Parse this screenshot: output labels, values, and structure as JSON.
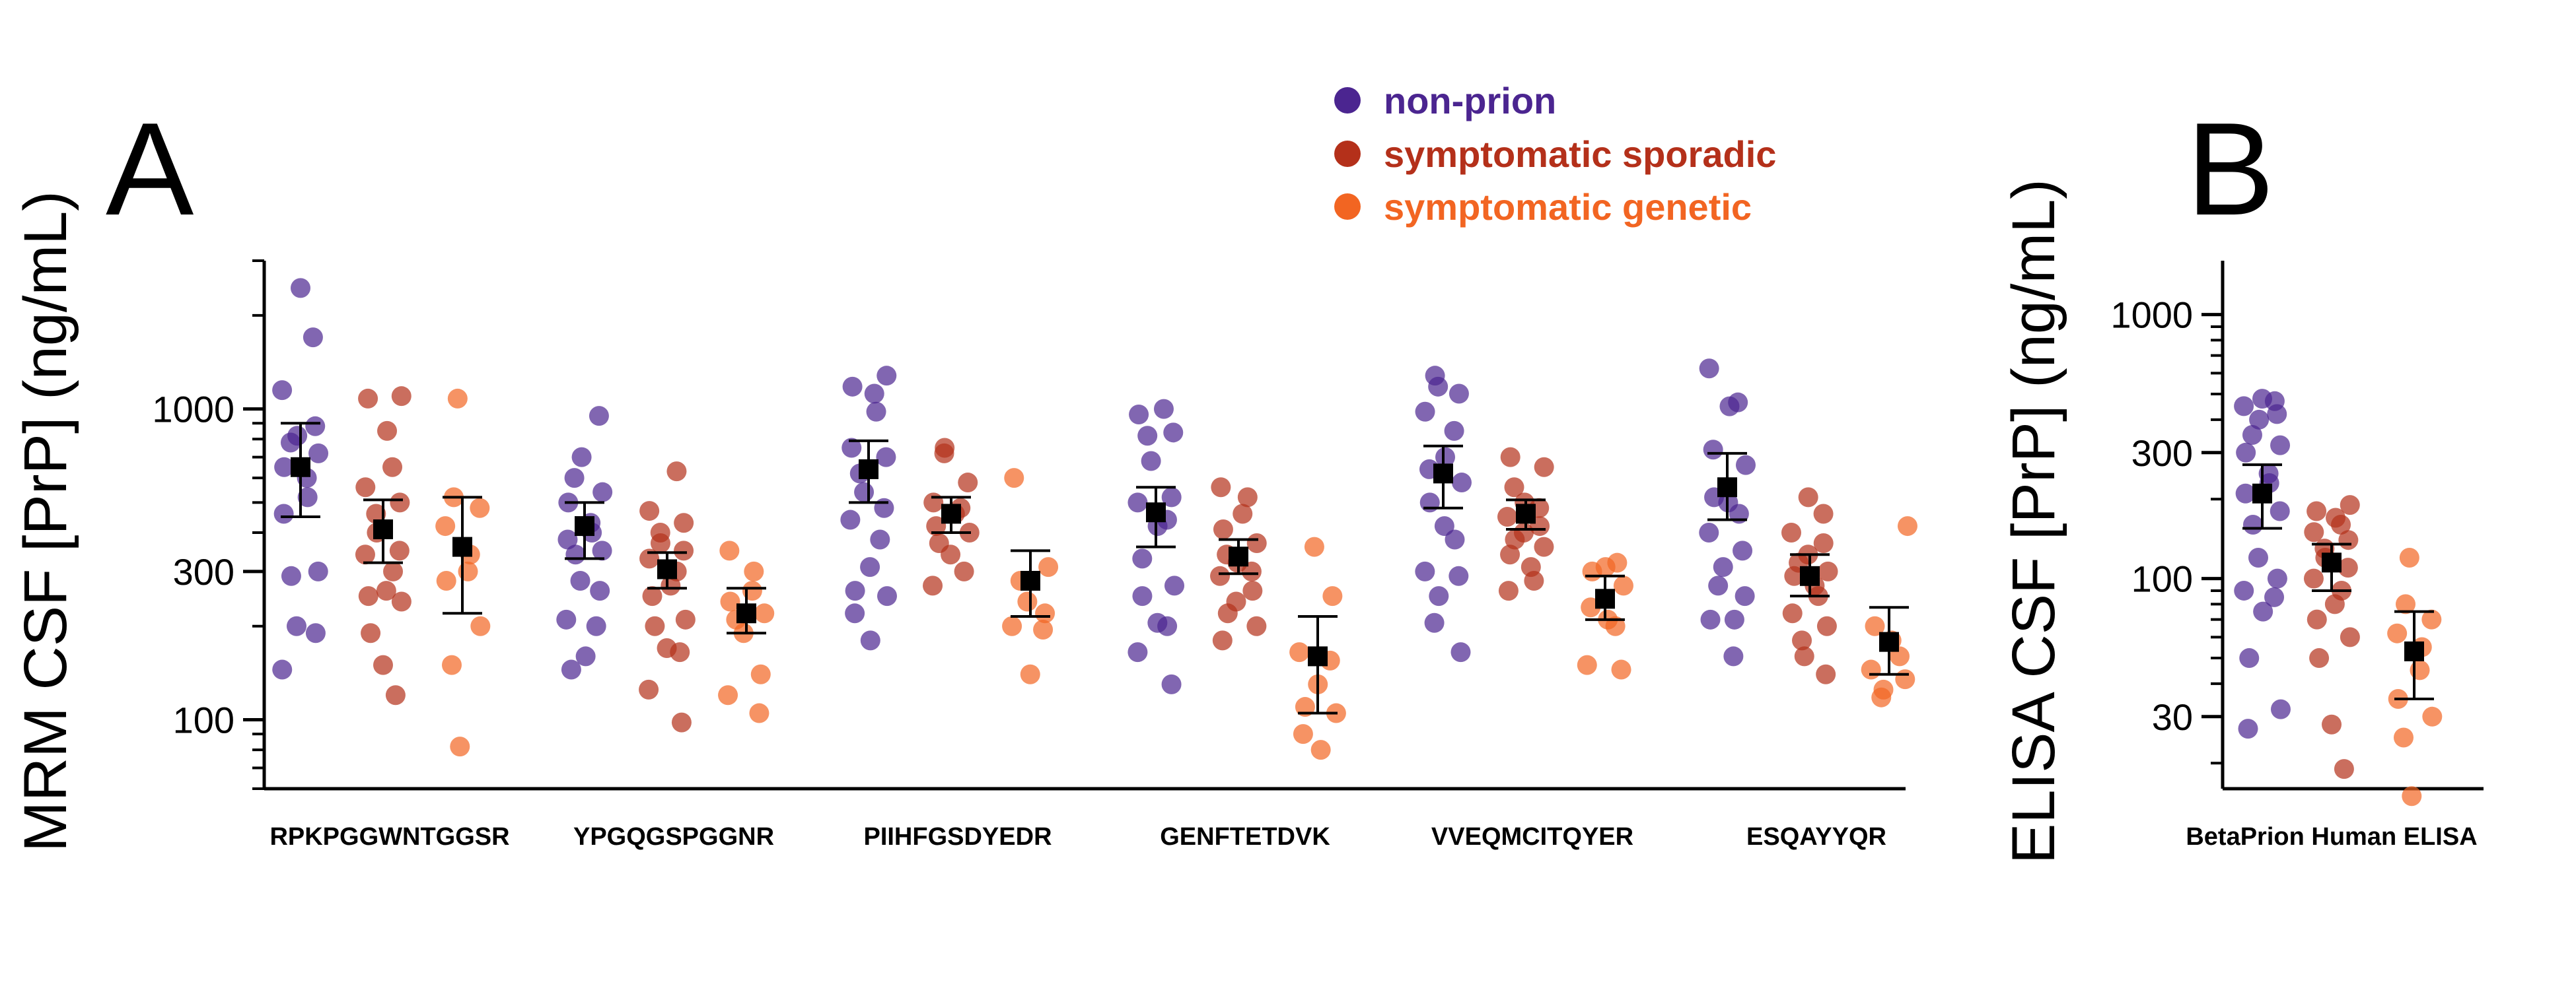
{
  "panel_a_letter": "A",
  "panel_b_letter": "B",
  "colors": {
    "non_prion": "#4b2590",
    "symptomatic_sporadic": "#b4301a",
    "symptomatic_genetic": "#f26522",
    "mean_marker": "#000000",
    "axis": "#000000"
  },
  "legend": [
    {
      "label": "non-prion",
      "color": "#4b2590"
    },
    {
      "label": "symptomatic sporadic",
      "color": "#b4301a"
    },
    {
      "label": "symptomatic genetic",
      "color": "#f26522"
    }
  ],
  "chart_data": [
    {
      "panel": "A",
      "type": "scatter",
      "ylabel": "MRM CSF [PrP] (ng/mL)",
      "yscale": "log",
      "ylim": [
        60,
        3000
      ],
      "yticks": [
        100,
        300,
        1000
      ],
      "ytick_labels": [
        "100",
        "300",
        "1000"
      ],
      "categories": [
        "RPKPGGWNTGGSR",
        "YPGQGSPGGNR",
        "PIIHFGSDYEDR",
        "GENFTETDVK",
        "VVEQMCITQYER",
        "ESQAYYQR"
      ],
      "series": [
        {
          "name": "non-prion",
          "points": [
            [
              2450,
              1700,
              1150,
              880,
              820,
              780,
              720,
              650,
              600,
              520,
              460,
              300,
              290,
              200,
              190,
              145
            ],
            [
              950,
              700,
              600,
              540,
              500,
              430,
              400,
              380,
              350,
              340,
              280,
              260,
              210,
              200,
              160,
              145
            ],
            [
              1280,
              1180,
              1120,
              980,
              750,
              700,
              620,
              540,
              480,
              440,
              380,
              310,
              260,
              250,
              220,
              180
            ],
            [
              1000,
              960,
              840,
              820,
              680,
              520,
              500,
              440,
              420,
              330,
              270,
              250,
              205,
              200,
              165,
              130
            ],
            [
              1280,
              1180,
              1120,
              980,
              850,
              700,
              640,
              580,
              500,
              420,
              380,
              300,
              290,
              250,
              205,
              165
            ],
            [
              1350,
              1050,
              1020,
              740,
              660,
              520,
              500,
              460,
              400,
              350,
              310,
              270,
              250,
              210,
              210,
              160
            ]
          ]
        },
        {
          "name": "symptomatic sporadic",
          "points": [
            [
              1100,
              1080,
              850,
              650,
              560,
              500,
              460,
              400,
              350,
              340,
              300,
              260,
              250,
              240,
              190,
              150,
              120
            ],
            [
              630,
              470,
              430,
              400,
              370,
              350,
              330,
              300,
              270,
              250,
              210,
              200,
              170,
              165,
              125,
              98
            ],
            [
              750,
              720,
              580,
              500,
              480,
              460,
              420,
              400,
              370,
              340,
              300,
              270
            ],
            [
              560,
              520,
              460,
              410,
              370,
              340,
              320,
              300,
              290,
              260,
              240,
              220,
              200,
              180
            ],
            [
              700,
              650,
              560,
              500,
              480,
              450,
              420,
              400,
              380,
              360,
              340,
              310,
              280,
              260
            ],
            [
              520,
              460,
              400,
              370,
              340,
              320,
              300,
              290,
              270,
              250,
              220,
              200,
              180,
              160,
              140
            ]
          ]
        },
        {
          "name": "symptomatic genetic",
          "points": [
            [
              1080,
              520,
              480,
              420,
              340,
              300,
              280,
              200,
              150,
              82
            ],
            [
              350,
              300,
              260,
              240,
              220,
              210,
              190,
              140,
              120,
              105
            ],
            [
              600,
              310,
              280,
              240,
              220,
              200,
              195,
              140
            ],
            [
              360,
              250,
              165,
              155,
              130,
              110,
              105,
              90,
              80
            ],
            [
              320,
              310,
              300,
              270,
              230,
              210,
              200,
              150,
              145
            ],
            [
              420,
              200,
              180,
              160,
              145,
              135,
              125,
              118
            ]
          ]
        }
      ],
      "summary": [
        {
          "category": "RPKPGGWNTGGSR",
          "group": "non-prion",
          "mean": 650,
          "low": 450,
          "high": 900
        },
        {
          "category": "RPKPGGWNTGGSR",
          "group": "symptomatic sporadic",
          "mean": 410,
          "low": 320,
          "high": 510
        },
        {
          "category": "RPKPGGWNTGGSR",
          "group": "symptomatic genetic",
          "mean": 360,
          "low": 220,
          "high": 520
        },
        {
          "category": "YPGQGSPGGNR",
          "group": "non-prion",
          "mean": 420,
          "low": 330,
          "high": 500
        },
        {
          "category": "YPGQGSPGGNR",
          "group": "symptomatic sporadic",
          "mean": 305,
          "low": 265,
          "high": 345
        },
        {
          "category": "YPGQGSPGGNR",
          "group": "symptomatic genetic",
          "mean": 220,
          "low": 190,
          "high": 265
        },
        {
          "category": "PIIHFGSDYEDR",
          "group": "non-prion",
          "mean": 640,
          "low": 500,
          "high": 790
        },
        {
          "category": "PIIHFGSDYEDR",
          "group": "symptomatic sporadic",
          "mean": 460,
          "low": 400,
          "high": 520
        },
        {
          "category": "PIIHFGSDYEDR",
          "group": "symptomatic genetic",
          "mean": 280,
          "low": 215,
          "high": 350
        },
        {
          "category": "GENFTETDVK",
          "group": "non-prion",
          "mean": 465,
          "low": 360,
          "high": 560
        },
        {
          "category": "GENFTETDVK",
          "group": "symptomatic sporadic",
          "mean": 335,
          "low": 295,
          "high": 380
        },
        {
          "category": "GENFTETDVK",
          "group": "symptomatic genetic",
          "mean": 160,
          "low": 105,
          "high": 215
        },
        {
          "category": "VVEQMCITQYER",
          "group": "non-prion",
          "mean": 620,
          "low": 480,
          "high": 760
        },
        {
          "category": "VVEQMCITQYER",
          "group": "symptomatic sporadic",
          "mean": 460,
          "low": 410,
          "high": 510
        },
        {
          "category": "VVEQMCITQYER",
          "group": "symptomatic genetic",
          "mean": 245,
          "low": 210,
          "high": 290
        },
        {
          "category": "ESQAYYQR",
          "group": "non-prion",
          "mean": 560,
          "low": 440,
          "high": 720
        },
        {
          "category": "ESQAYYQR",
          "group": "symptomatic sporadic",
          "mean": 290,
          "low": 250,
          "high": 340
        },
        {
          "category": "ESQAYYQR",
          "group": "symptomatic genetic",
          "mean": 178,
          "low": 140,
          "high": 230
        }
      ]
    },
    {
      "panel": "B",
      "type": "scatter",
      "ylabel": "ELISA CSF [PrP] (ng/mL)",
      "yscale": "log",
      "ylim": [
        16,
        1600
      ],
      "yticks": [
        30,
        100,
        300,
        1000
      ],
      "ytick_labels": [
        "30",
        "100",
        "300",
        "1000"
      ],
      "categories": [
        "BetaPrion Human ELISA"
      ],
      "series": [
        {
          "name": "non-prion",
          "points": [
            [
              480,
              470,
              450,
              420,
              400,
              350,
              320,
              300,
              250,
              230,
              210,
              180,
              160,
              120,
              100,
              90,
              85,
              75,
              50,
              32,
              27
            ]
          ]
        },
        {
          "name": "symptomatic sporadic",
          "points": [
            [
              190,
              180,
              170,
              160,
              150,
              140,
              130,
              120,
              110,
              100,
              90,
              80,
              70,
              60,
              50,
              28,
              19
            ]
          ]
        },
        {
          "name": "symptomatic genetic",
          "points": [
            [
              120,
              80,
              70,
              62,
              55,
              45,
              35,
              30,
              25,
              15
            ]
          ]
        }
      ],
      "summary": [
        {
          "category": "BetaPrion Human ELISA",
          "group": "non-prion",
          "mean": 210,
          "low": 155,
          "high": 270
        },
        {
          "category": "BetaPrion Human ELISA",
          "group": "symptomatic sporadic",
          "mean": 115,
          "low": 90,
          "high": 135
        },
        {
          "category": "BetaPrion Human ELISA",
          "group": "symptomatic genetic",
          "mean": 53,
          "low": 35,
          "high": 75
        }
      ]
    }
  ]
}
